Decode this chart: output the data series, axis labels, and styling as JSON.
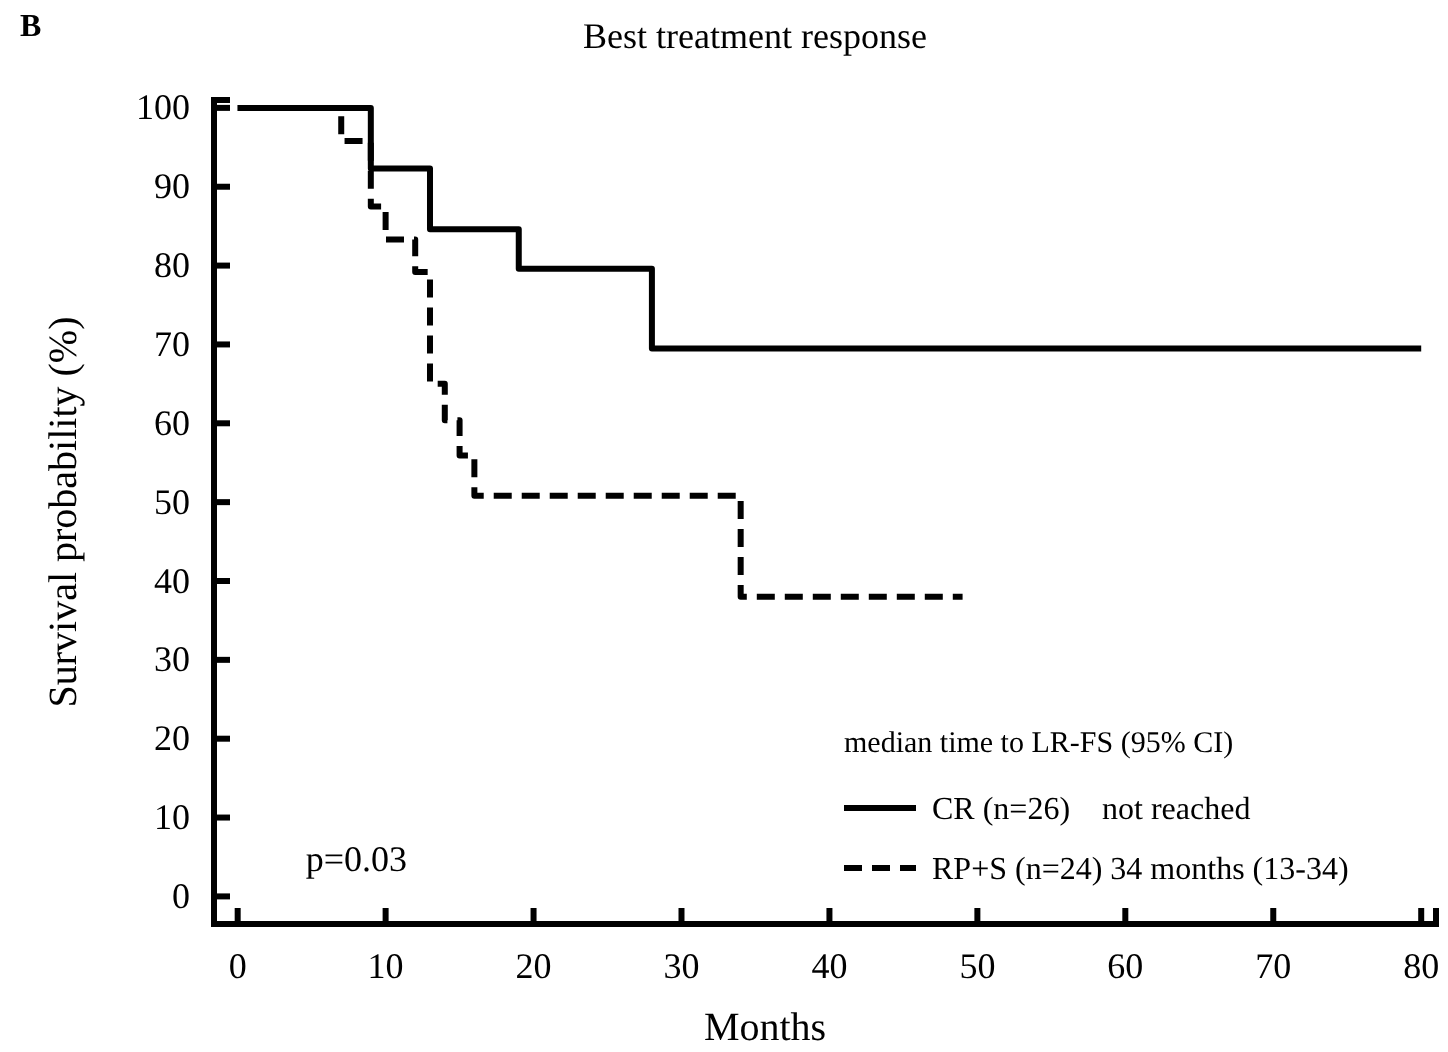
{
  "chart_data": {
    "type": "step",
    "title": "Best treatment response",
    "xlabel": "Months",
    "ylabel": "Survival probability (%)",
    "legend_title": "median time to LR-FS (95% CI)",
    "legend": "bottom right",
    "grid": false,
    "marker": "none",
    "annotations": [
      "B",
      "p=0.03"
    ],
    "xlim": [
      -1.6,
      81
    ],
    "xticks": [
      0,
      10,
      20,
      30,
      40,
      50,
      60,
      70,
      80
    ],
    "ylim": [
      -3.5,
      101
    ],
    "yticks": [
      0,
      10,
      20,
      30,
      40,
      50,
      60,
      70,
      80,
      90,
      100
    ],
    "series": [
      {
        "name": "CR (n=26)    not reached",
        "color": "#000000",
        "line_style": "solid",
        "x": [
          0,
          9,
          13,
          19,
          28,
          80
        ],
        "values": [
          100,
          92.3,
          84.6,
          79.6,
          69.5,
          69.5
        ]
      },
      {
        "name": "RP+S (n=24) 34 months (13-34)",
        "color": "#000000",
        "line_style": "dashed",
        "x": [
          0,
          7,
          9,
          10,
          12,
          13,
          14,
          15,
          16,
          34,
          49
        ],
        "values": [
          100,
          95.8,
          87.5,
          83.3,
          79.2,
          65,
          60.4,
          55.9,
          50.8,
          38,
          38
        ]
      }
    ]
  }
}
